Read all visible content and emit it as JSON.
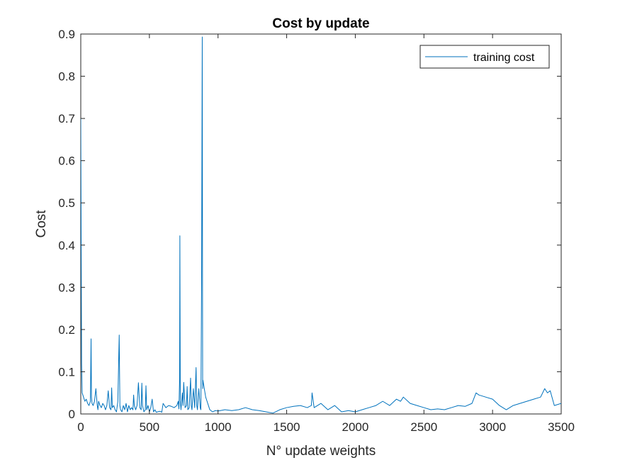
{
  "chart_data": {
    "type": "line",
    "title": "Cost by update",
    "xlabel": "N° update weights",
    "ylabel": "Cost",
    "xlim": [
      0,
      3500
    ],
    "ylim": [
      0,
      0.9
    ],
    "xticks": [
      0,
      500,
      1000,
      1500,
      2000,
      2500,
      3000,
      3500
    ],
    "xtick_labels": [
      "0",
      "500",
      "1000",
      "1500",
      "2000",
      "2500",
      "3000",
      "3500"
    ],
    "yticks": [
      0,
      0.1,
      0.2,
      0.3,
      0.4,
      0.5,
      0.6,
      0.7,
      0.8,
      0.9
    ],
    "ytick_labels": [
      "0",
      "0.1",
      "0.2",
      "0.3",
      "0.4",
      "0.5",
      "0.6",
      "0.7",
      "0.8",
      "0.9"
    ],
    "grid": false,
    "legend_position": "top-right",
    "line_color": "#0072BD",
    "series": [
      {
        "name": "training cost",
        "x": [
          0,
          3,
          6,
          10,
          15,
          20,
          30,
          40,
          50,
          60,
          70,
          75,
          78,
          82,
          90,
          100,
          110,
          120,
          125,
          130,
          140,
          150,
          160,
          170,
          180,
          190,
          200,
          210,
          220,
          225,
          230,
          240,
          250,
          260,
          270,
          280,
          285,
          290,
          300,
          310,
          320,
          330,
          340,
          350,
          360,
          370,
          380,
          385,
          390,
          400,
          410,
          420,
          430,
          440,
          445,
          450,
          460,
          470,
          475,
          480,
          490,
          500,
          510,
          520,
          530,
          540,
          550,
          560,
          570,
          580,
          590,
          600,
          620,
          640,
          660,
          680,
          700,
          710,
          715,
          720,
          722,
          725,
          730,
          740,
          745,
          750,
          760,
          770,
          775,
          780,
          790,
          800,
          805,
          810,
          820,
          830,
          840,
          845,
          850,
          860,
          870,
          875,
          880,
          885,
          888,
          890,
          895,
          900,
          910,
          920,
          930,
          940,
          960,
          980,
          1000,
          1050,
          1100,
          1150,
          1200,
          1250,
          1300,
          1350,
          1400,
          1450,
          1500,
          1550,
          1600,
          1650,
          1680,
          1685,
          1700,
          1750,
          1800,
          1850,
          1900,
          1950,
          2000,
          2050,
          2100,
          2150,
          2200,
          2250,
          2300,
          2330,
          2350,
          2400,
          2450,
          2500,
          2550,
          2600,
          2650,
          2700,
          2750,
          2800,
          2850,
          2880,
          2900,
          2950,
          3000,
          3050,
          3100,
          3150,
          3200,
          3250,
          3300,
          3350,
          3380,
          3400,
          3420,
          3450,
          3500
        ],
        "values": [
          0.7,
          0.4,
          0.12,
          0.05,
          0.045,
          0.04,
          0.03,
          0.035,
          0.025,
          0.02,
          0.03,
          0.178,
          0.04,
          0.025,
          0.02,
          0.03,
          0.06,
          0.02,
          0.01,
          0.03,
          0.02,
          0.015,
          0.025,
          0.02,
          0.01,
          0.02,
          0.055,
          0.015,
          0.01,
          0.062,
          0.015,
          0.02,
          0.01,
          0.005,
          0.03,
          0.187,
          0.02,
          0.01,
          0.005,
          0.02,
          0.01,
          0.025,
          0.005,
          0.02,
          0.01,
          0.015,
          0.01,
          0.045,
          0.02,
          0.01,
          0.02,
          0.074,
          0.015,
          0.01,
          0.073,
          0.02,
          0.005,
          0.01,
          0.067,
          0.01,
          0.02,
          0.005,
          0.015,
          0.035,
          0.005,
          0.01,
          0.004,
          0.005,
          0.006,
          0.006,
          0.004,
          0.025,
          0.015,
          0.02,
          0.018,
          0.015,
          0.02,
          0.03,
          0.012,
          0.083,
          0.422,
          0.03,
          0.01,
          0.05,
          0.02,
          0.075,
          0.015,
          0.02,
          0.065,
          0.01,
          0.015,
          0.085,
          0.02,
          0.01,
          0.06,
          0.015,
          0.11,
          0.02,
          0.01,
          0.06,
          0.015,
          0.01,
          0.31,
          0.893,
          0.06,
          0.08,
          0.07,
          0.06,
          0.04,
          0.03,
          0.02,
          0.01,
          0.005,
          0.008,
          0.007,
          0.01,
          0.008,
          0.01,
          0.015,
          0.01,
          0.008,
          0.005,
          0.002,
          0.01,
          0.015,
          0.018,
          0.02,
          0.015,
          0.02,
          0.05,
          0.015,
          0.025,
          0.01,
          0.02,
          0.005,
          0.008,
          0.005,
          0.01,
          0.015,
          0.02,
          0.03,
          0.02,
          0.035,
          0.03,
          0.04,
          0.025,
          0.02,
          0.015,
          0.01,
          0.012,
          0.01,
          0.015,
          0.02,
          0.018,
          0.025,
          0.05,
          0.045,
          0.04,
          0.035,
          0.02,
          0.01,
          0.02,
          0.025,
          0.03,
          0.035,
          0.04,
          0.06,
          0.05,
          0.055,
          0.02,
          0.025
        ]
      }
    ]
  }
}
